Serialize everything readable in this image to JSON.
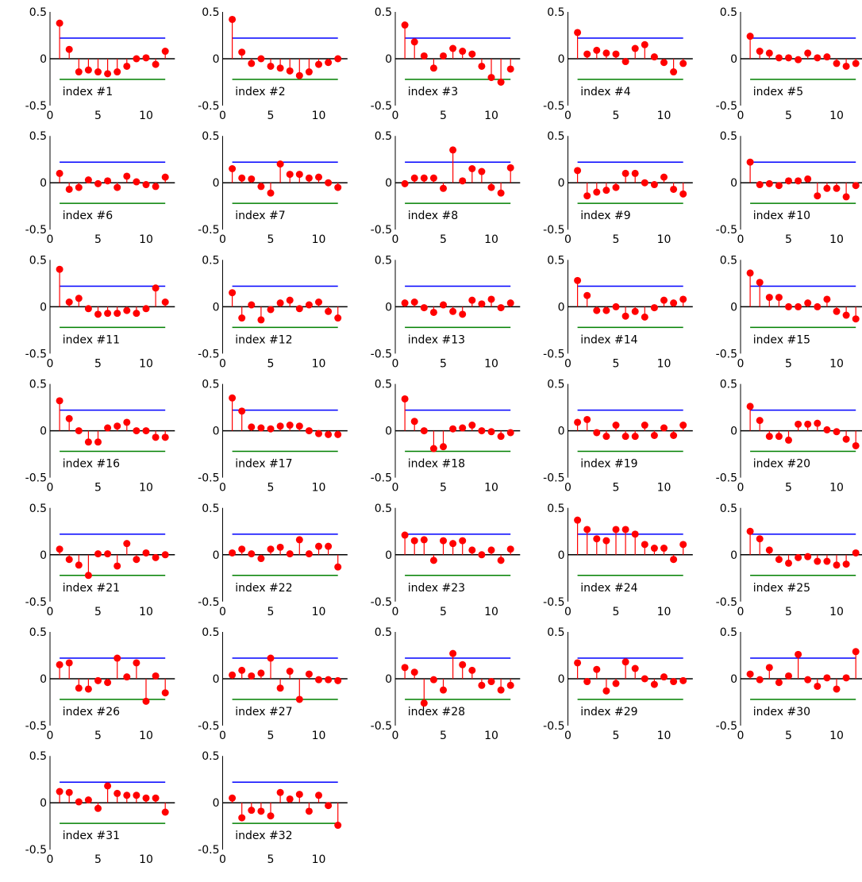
{
  "colors": {
    "stem": "#ff0000",
    "upper_bound": "#0000ff",
    "lower_bound": "#008000",
    "axis": "#000000",
    "background": "#ffffff"
  },
  "chart_data": {
    "type": "stem",
    "layout": "grid of 32 small stem plots, 5 per row",
    "xlim": [
      0,
      13
    ],
    "ylim": [
      -0.5,
      0.5
    ],
    "xticks": [
      0,
      5,
      10
    ],
    "yticks": [
      -0.5,
      0,
      0.5
    ],
    "ytick_labels": [
      "-0.5",
      "0",
      "0.5"
    ],
    "x": [
      1,
      2,
      3,
      4,
      5,
      6,
      7,
      8,
      9,
      10,
      11,
      12
    ],
    "upper_bound": 0.22,
    "lower_bound": -0.22,
    "bound_x_range": [
      1,
      12
    ],
    "panels": [
      {
        "label": "index #1",
        "values": [
          0.38,
          0.1,
          -0.14,
          -0.12,
          -0.14,
          -0.16,
          -0.14,
          -0.08,
          0.0,
          0.01,
          -0.06,
          0.08
        ]
      },
      {
        "label": "index #2",
        "values": [
          0.42,
          0.07,
          -0.05,
          0.0,
          -0.08,
          -0.1,
          -0.13,
          -0.18,
          -0.14,
          -0.06,
          -0.04,
          0.0
        ]
      },
      {
        "label": "index #3",
        "values": [
          0.36,
          0.18,
          0.03,
          -0.1,
          0.03,
          0.11,
          0.08,
          0.05,
          -0.08,
          -0.2,
          -0.25,
          -0.11
        ]
      },
      {
        "label": "index #4",
        "values": [
          0.28,
          0.05,
          0.09,
          0.06,
          0.05,
          -0.03,
          0.11,
          0.15,
          0.02,
          -0.04,
          -0.14,
          -0.05
        ]
      },
      {
        "label": "index #5",
        "values": [
          0.24,
          0.08,
          0.06,
          0.01,
          0.01,
          -0.01,
          0.06,
          0.01,
          0.02,
          -0.05,
          -0.08,
          -0.05
        ]
      },
      {
        "label": "index #6",
        "values": [
          0.1,
          -0.07,
          -0.05,
          0.03,
          -0.01,
          0.02,
          -0.05,
          0.07,
          0.01,
          -0.02,
          -0.04,
          0.06
        ]
      },
      {
        "label": "index #7",
        "values": [
          0.15,
          0.05,
          0.04,
          -0.04,
          -0.11,
          0.2,
          0.09,
          0.09,
          0.05,
          0.06,
          0.0,
          -0.05
        ]
      },
      {
        "label": "index #8",
        "values": [
          -0.01,
          0.05,
          0.05,
          0.05,
          -0.06,
          0.35,
          0.02,
          0.15,
          0.12,
          -0.05,
          -0.11,
          0.16
        ]
      },
      {
        "label": "index #9",
        "values": [
          0.13,
          -0.14,
          -0.1,
          -0.08,
          -0.05,
          0.1,
          0.1,
          0.0,
          -0.02,
          0.06,
          -0.07,
          -0.12
        ]
      },
      {
        "label": "index #10",
        "values": [
          0.22,
          -0.02,
          -0.01,
          -0.03,
          0.02,
          0.02,
          0.04,
          -0.14,
          -0.06,
          -0.06,
          -0.15,
          -0.03
        ]
      },
      {
        "label": "index #11",
        "values": [
          0.4,
          0.05,
          0.09,
          -0.02,
          -0.08,
          -0.07,
          -0.07,
          -0.04,
          -0.07,
          -0.02,
          0.2,
          0.05
        ]
      },
      {
        "label": "index #12",
        "values": [
          0.15,
          -0.12,
          0.02,
          -0.14,
          -0.03,
          0.04,
          0.07,
          -0.02,
          0.02,
          0.05,
          -0.05,
          -0.12
        ]
      },
      {
        "label": "index #13",
        "values": [
          0.04,
          0.05,
          -0.01,
          -0.06,
          0.02,
          -0.05,
          -0.08,
          0.07,
          0.03,
          0.08,
          -0.01,
          0.04
        ]
      },
      {
        "label": "index #14",
        "values": [
          0.28,
          0.12,
          -0.04,
          -0.04,
          0.0,
          -0.1,
          -0.05,
          -0.11,
          -0.01,
          0.07,
          0.04,
          0.08
        ]
      },
      {
        "label": "index #15",
        "values": [
          0.36,
          0.26,
          0.1,
          0.1,
          0.0,
          0.0,
          0.04,
          0.0,
          0.08,
          -0.05,
          -0.09,
          -0.13
        ]
      },
      {
        "label": "index #16",
        "values": [
          0.32,
          0.13,
          0.0,
          -0.12,
          -0.12,
          0.03,
          0.05,
          0.09,
          0.0,
          0.0,
          -0.07,
          -0.07
        ]
      },
      {
        "label": "index #17",
        "values": [
          0.35,
          0.21,
          0.04,
          0.03,
          0.02,
          0.05,
          0.06,
          0.05,
          0.0,
          -0.03,
          -0.04,
          -0.04
        ]
      },
      {
        "label": "index #18",
        "values": [
          0.34,
          0.1,
          0.0,
          -0.19,
          -0.17,
          0.02,
          0.03,
          0.06,
          0.0,
          -0.01,
          -0.06,
          -0.02
        ]
      },
      {
        "label": "index #19",
        "values": [
          0.09,
          0.12,
          -0.02,
          -0.06,
          0.06,
          -0.06,
          -0.06,
          0.06,
          -0.05,
          0.03,
          -0.05,
          0.06
        ]
      },
      {
        "label": "index #20",
        "values": [
          0.26,
          0.11,
          -0.06,
          -0.06,
          -0.1,
          0.07,
          0.07,
          0.08,
          0.01,
          -0.01,
          -0.09,
          -0.16
        ]
      },
      {
        "label": "index #21",
        "values": [
          0.06,
          -0.05,
          -0.11,
          -0.22,
          0.01,
          0.01,
          -0.12,
          0.12,
          -0.05,
          0.02,
          -0.03,
          0.0
        ]
      },
      {
        "label": "index #22",
        "values": [
          0.02,
          0.06,
          0.01,
          -0.04,
          0.06,
          0.08,
          0.01,
          0.16,
          0.01,
          0.09,
          0.09,
          -0.13
        ]
      },
      {
        "label": "index #23",
        "values": [
          0.21,
          0.15,
          0.16,
          -0.06,
          0.15,
          0.12,
          0.15,
          0.05,
          0.0,
          0.05,
          -0.06,
          0.06
        ]
      },
      {
        "label": "index #24",
        "values": [
          0.37,
          0.27,
          0.17,
          0.15,
          0.27,
          0.27,
          0.22,
          0.11,
          0.07,
          0.07,
          -0.05,
          0.11
        ]
      },
      {
        "label": "index #25",
        "values": [
          0.25,
          0.17,
          0.05,
          -0.05,
          -0.09,
          -0.03,
          -0.02,
          -0.07,
          -0.07,
          -0.11,
          -0.1,
          0.02
        ]
      },
      {
        "label": "index #26",
        "values": [
          0.15,
          0.17,
          -0.1,
          -0.11,
          -0.02,
          -0.04,
          0.22,
          0.02,
          0.17,
          -0.24,
          0.03,
          -0.15
        ]
      },
      {
        "label": "index #27",
        "values": [
          0.04,
          0.09,
          0.03,
          0.06,
          0.22,
          -0.1,
          0.08,
          -0.22,
          0.05,
          -0.01,
          -0.01,
          -0.02
        ]
      },
      {
        "label": "index #28",
        "values": [
          0.12,
          0.07,
          -0.26,
          -0.01,
          -0.12,
          0.27,
          0.15,
          0.09,
          -0.07,
          -0.03,
          -0.12,
          -0.07
        ]
      },
      {
        "label": "index #29",
        "values": [
          0.17,
          -0.03,
          0.1,
          -0.13,
          -0.05,
          0.18,
          0.11,
          0.0,
          -0.06,
          0.02,
          -0.03,
          -0.02
        ]
      },
      {
        "label": "index #30",
        "values": [
          0.05,
          -0.01,
          0.12,
          -0.04,
          0.03,
          0.26,
          -0.01,
          -0.08,
          0.01,
          -0.11,
          0.01,
          0.29
        ]
      },
      {
        "label": "index #31",
        "values": [
          0.12,
          0.11,
          0.01,
          0.03,
          -0.06,
          0.18,
          0.1,
          0.08,
          0.08,
          0.05,
          0.05,
          -0.1
        ]
      },
      {
        "label": "index #32",
        "values": [
          0.05,
          -0.16,
          -0.08,
          -0.09,
          -0.14,
          0.11,
          0.04,
          0.09,
          -0.09,
          0.08,
          -0.03,
          -0.24
        ]
      }
    ]
  }
}
